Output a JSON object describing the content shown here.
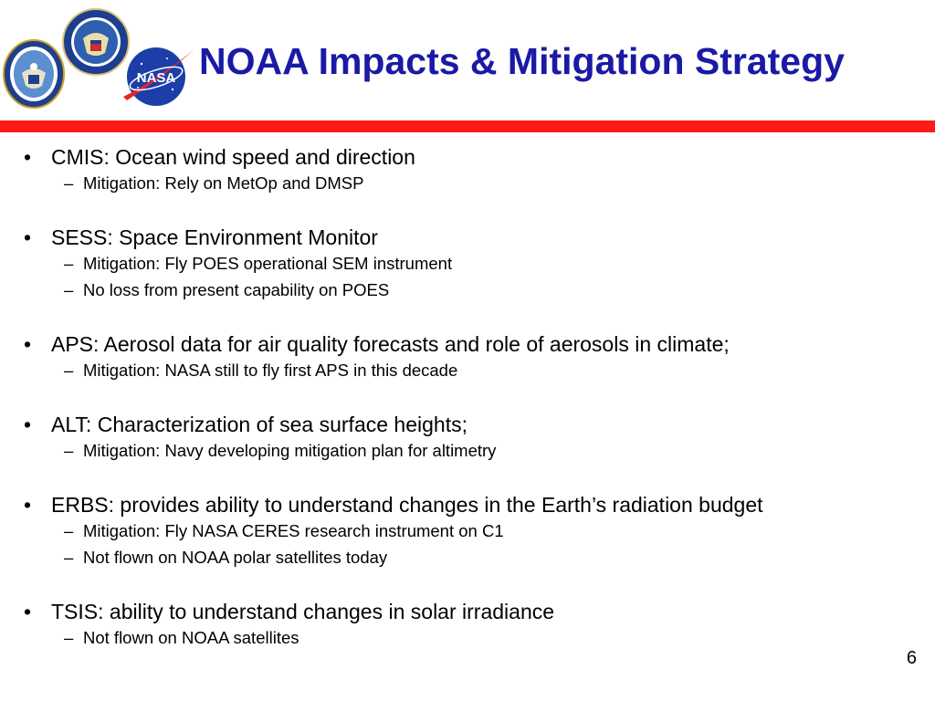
{
  "slide": {
    "title": "NOAA Impacts & Mitigation Strategy",
    "page_number": "6",
    "colors": {
      "title": "#1a1aa6",
      "rule": "#ff1a1a",
      "text": "#000000"
    }
  },
  "logos": [
    "dod-seal",
    "commerce-seal",
    "nasa-meatball"
  ],
  "bullets": [
    {
      "marker": "•",
      "text": "CMIS:  Ocean wind speed and direction",
      "subs": [
        {
          "marker": "–",
          "text": "Mitigation: Rely on MetOp and DMSP"
        }
      ]
    },
    {
      "marker": "•",
      "text": "SESS: Space Environment Monitor",
      "subs": [
        {
          "marker": "–",
          "text": "Mitigation: Fly POES operational SEM instrument"
        },
        {
          "marker": "–",
          "text": "No loss from present capability on POES"
        }
      ]
    },
    {
      "marker": "•",
      "text": "APS: Aerosol data for air quality forecasts and role of aerosols in climate;",
      "subs": [
        {
          "marker": "–",
          "text": "Mitigation: NASA still to fly first APS in this decade"
        }
      ]
    },
    {
      "marker": "•",
      "text": "ALT: Characterization of sea surface heights;",
      "subs": [
        {
          "marker": "–",
          "text": "Mitigation: Navy developing mitigation plan for altimetry"
        }
      ]
    },
    {
      "marker": "•",
      "text": "ERBS: provides ability to understand changes in the Earth’s radiation budget",
      "subs": [
        {
          "marker": "–",
          "text": "Mitigation: Fly NASA CERES research instrument on C1"
        },
        {
          "marker": "–",
          "text": "Not flown on NOAA polar satellites today"
        }
      ]
    },
    {
      "marker": "•",
      "text": "TSIS: ability to understand changes in solar irradiance",
      "subs": [
        {
          "marker": "–",
          "text": "Not flown on NOAA satellites"
        }
      ]
    }
  ]
}
